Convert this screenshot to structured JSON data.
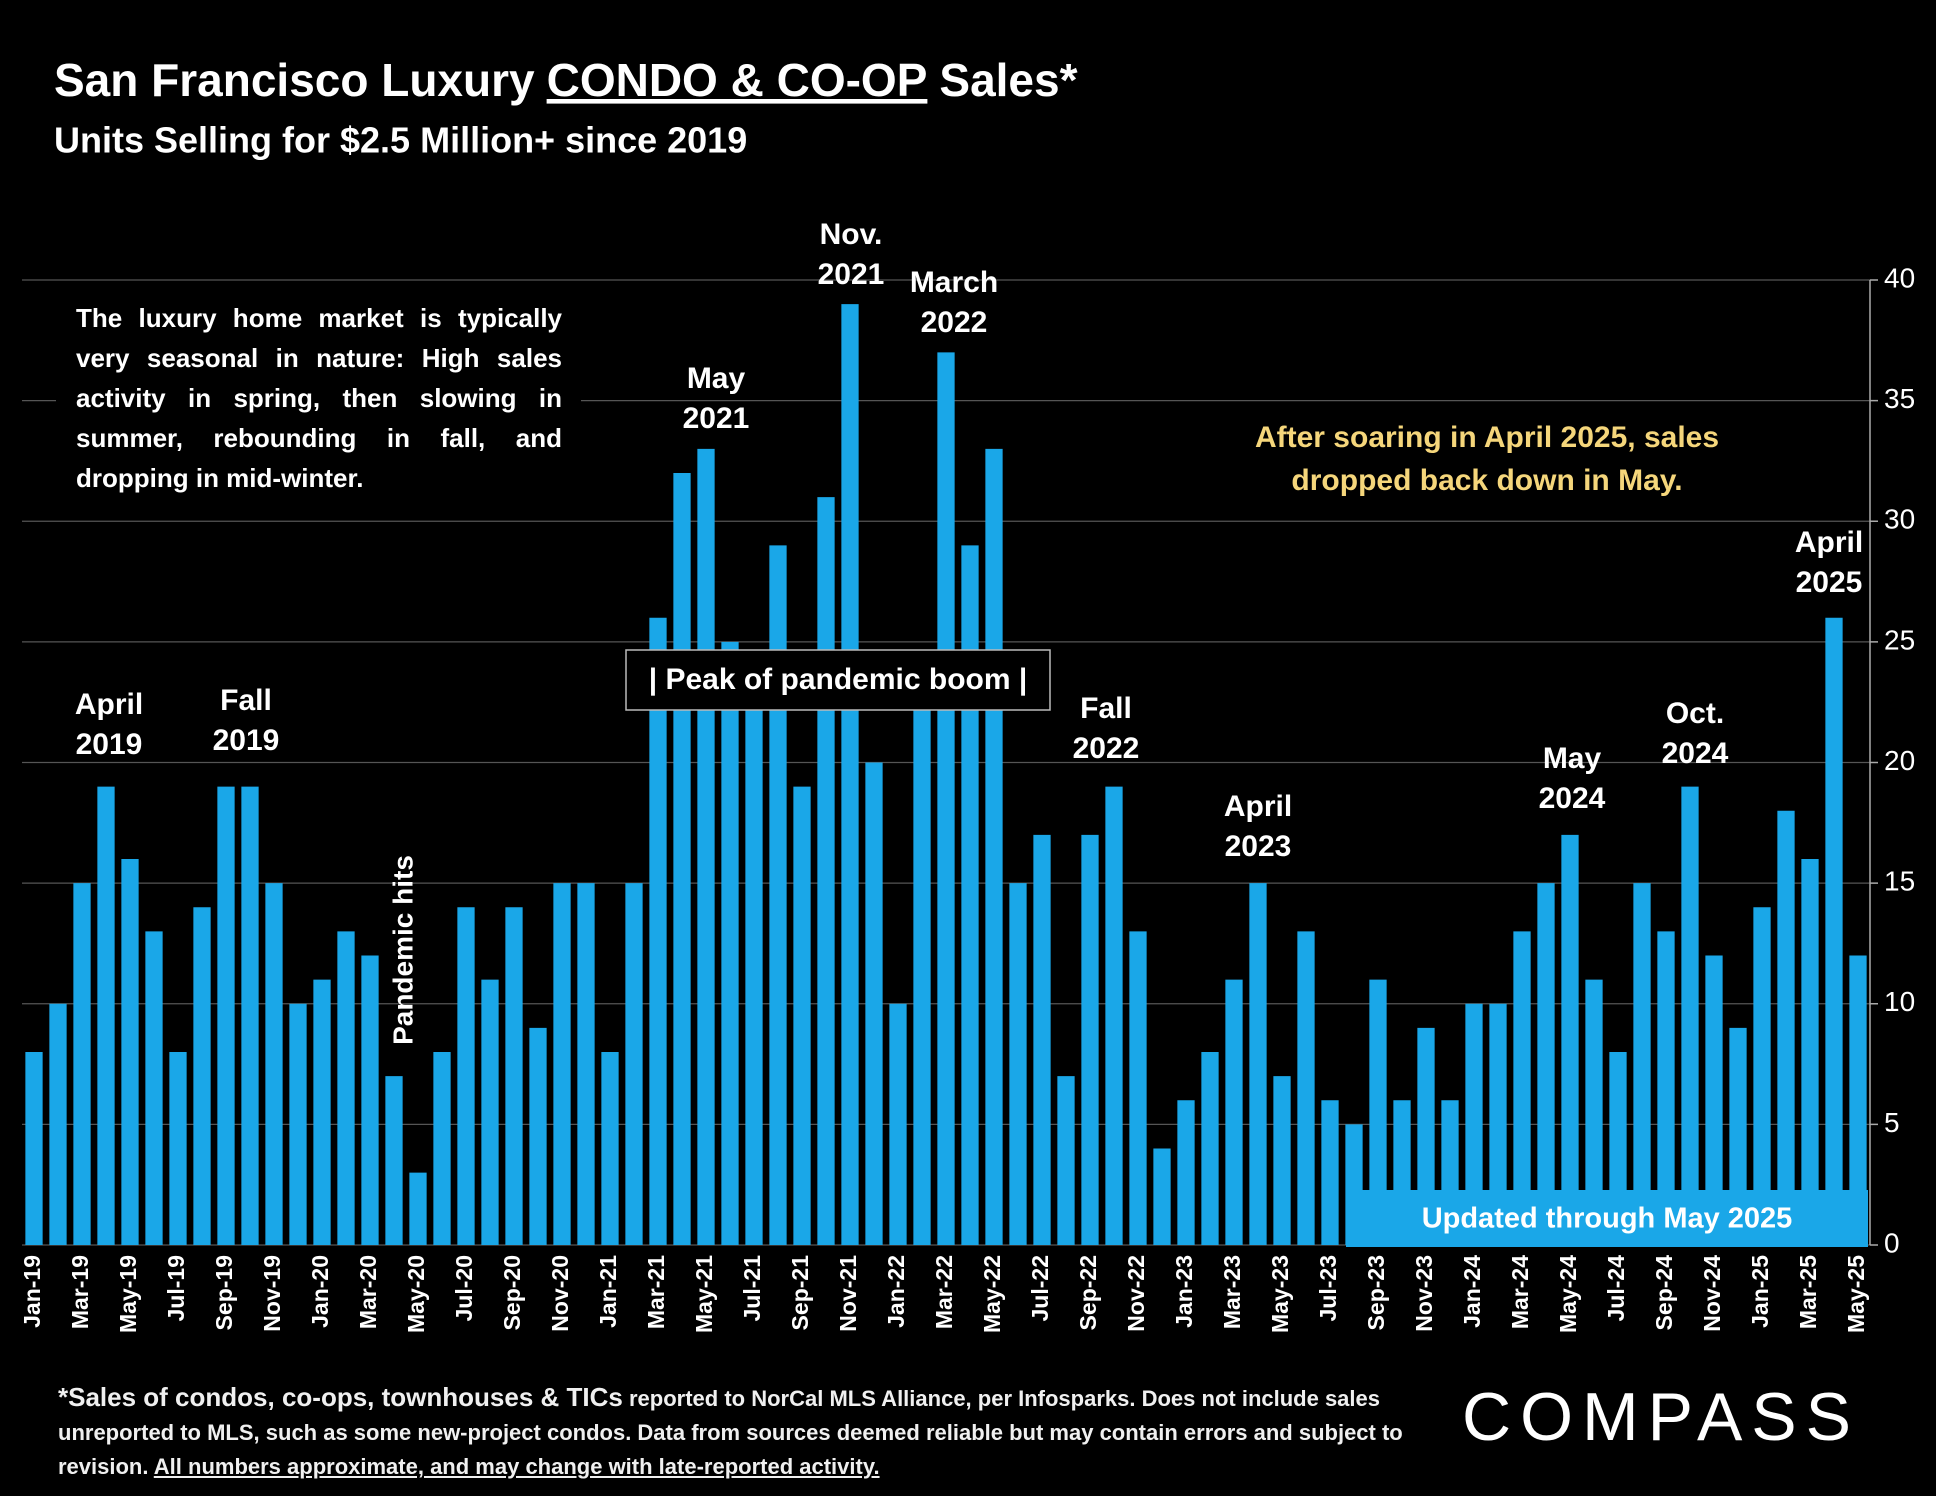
{
  "chart_data": {
    "type": "bar",
    "title": [
      "San Francisco Luxury",
      "CONDO & CO-OP",
      "Sales*"
    ],
    "subtitle": "Units Selling for $2.5 Million+ since 2019",
    "categories": [
      "Jan-19",
      null,
      "Mar-19",
      null,
      "May-19",
      null,
      "Jul-19",
      null,
      "Sep-19",
      null,
      "Nov-19",
      null,
      "Jan-20",
      null,
      "Mar-20",
      null,
      "May-20",
      null,
      "Jul-20",
      null,
      "Sep-20",
      null,
      "Nov-20",
      null,
      "Jan-21",
      null,
      "Mar-21",
      null,
      "May-21",
      null,
      "Jul-21",
      null,
      "Sep-21",
      null,
      "Nov-21",
      null,
      "Jan-22",
      null,
      "Mar-22",
      null,
      "May-22",
      null,
      "Jul-22",
      null,
      "Sep-22",
      null,
      "Nov-22",
      null,
      "Jan-23",
      null,
      "Mar-23",
      null,
      "May-23",
      null,
      "Jul-23",
      null,
      "Sep-23",
      null,
      "Nov-23",
      null,
      "Jan-24",
      null,
      "Mar-24",
      null,
      "May-24",
      null,
      "Jul-24",
      null,
      "Sep-24",
      null,
      "Nov-24",
      null,
      "Jan-25",
      null,
      "Mar-25",
      null,
      "May-25"
    ],
    "values": [
      8,
      10,
      15,
      19,
      16,
      13,
      8,
      14,
      19,
      19,
      15,
      10,
      11,
      13,
      12,
      7,
      3,
      8,
      14,
      11,
      14,
      9,
      15,
      15,
      8,
      15,
      26,
      32,
      33,
      25,
      23,
      29,
      19,
      31,
      39,
      20,
      10,
      23,
      37,
      29,
      33,
      15,
      17,
      7,
      17,
      19,
      13,
      4,
      6,
      8,
      11,
      15,
      7,
      13,
      6,
      5,
      11,
      6,
      9,
      6,
      10,
      10,
      13,
      15,
      17,
      11,
      8,
      15,
      13,
      19,
      12,
      9,
      14,
      18,
      16,
      26,
      12
    ],
    "color": "#1aa7e8",
    "ylim": [
      0,
      40
    ],
    "yticks": [
      0,
      5,
      10,
      15,
      20,
      25,
      30,
      35,
      40
    ],
    "grid": true,
    "annotations": [
      {
        "lines": [
          "April",
          "2019"
        ]
      },
      {
        "lines": [
          "Fall",
          "2019"
        ]
      },
      {
        "lines": [
          "May",
          "2021"
        ]
      },
      {
        "lines": [
          "Nov.",
          "2021"
        ]
      },
      {
        "lines": [
          "March",
          "2022"
        ]
      },
      {
        "lines": [
          "Fall",
          "2022"
        ]
      },
      {
        "lines": [
          "April",
          "2023"
        ]
      },
      {
        "lines": [
          "May",
          "2024"
        ]
      },
      {
        "lines": [
          "Oct.",
          "2024"
        ]
      },
      {
        "lines": [
          "April",
          "2025"
        ]
      }
    ],
    "pandemic_note": "Pandemic hits",
    "peak_note": "| Peak of pandemic boom |",
    "seasonal_note": "The luxury home market is typically very seasonal in nature: High sales activity in spring, then slowing in summer, rebounding in fall, and dropping in mid-winter.",
    "highlight_note": {
      "lines": [
        "After soaring in April 2025, sales",
        "dropped back down in May."
      ],
      "color": "#f5d67b"
    },
    "updated_note": "Updated through May 2025",
    "footnote": [
      "*Sales of condos, co-ops, townhouses & TICs",
      "reported to NorCal MLS Alliance, per Infosparks. Does not include sales unreported to MLS, such as some new-project condos. Data from sources deemed reliable but may contain errors and subject to revision.",
      "All numbers approximate, and may change with late-reported activity."
    ],
    "logo": "COMPASS"
  }
}
